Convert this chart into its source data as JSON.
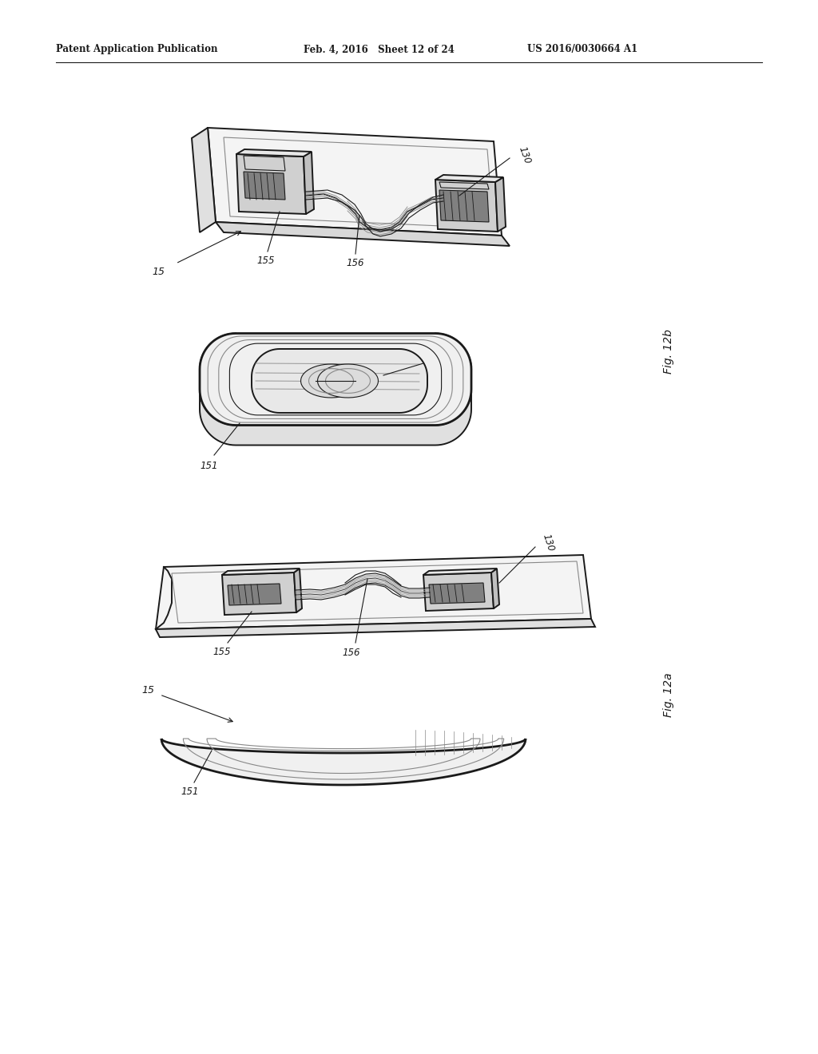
{
  "background_color": "#ffffff",
  "header_left": "Patent Application Publication",
  "header_mid": "Feb. 4, 2016   Sheet 12 of 24",
  "header_right": "US 2016/0030664 A1",
  "fig_12b_label": "Fig. 12b",
  "fig_12a_label": "Fig. 12a",
  "fig_width": 1024,
  "fig_height": 1320,
  "color_dark": "#1a1a1a",
  "color_gray": "#888888",
  "color_lgray": "#cccccc",
  "color_fill_plate": "#f4f4f4",
  "color_fill_body": "#f0f0f0",
  "color_fill_connector": "#d0d0d0",
  "color_fill_connector_dark": "#808080",
  "lw_main": 1.4,
  "lw_thin": 0.8,
  "lw_thick": 2.0
}
